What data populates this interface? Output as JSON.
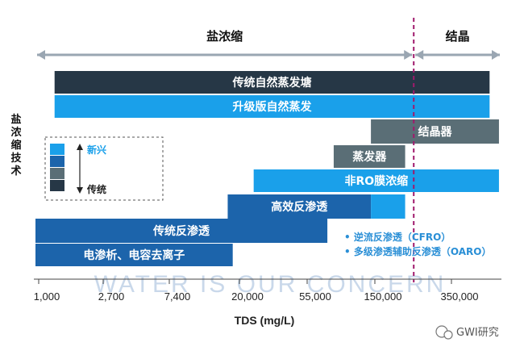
{
  "chart_data": {
    "type": "gantt-range",
    "xlabel": "TDS (mg/L)",
    "ylabel": "盐浓缩技术",
    "x_tick_labels": [
      "1,000",
      "2,700",
      "7,400",
      "20,000",
      "55,000",
      "150,000",
      "350,000"
    ],
    "x_scale": "log",
    "x_range": [
      1000,
      600000
    ],
    "zones": [
      {
        "name": "盐浓缩",
        "from": 1000,
        "to": 180000
      },
      {
        "name": "结晶",
        "from": 180000,
        "to": 600000
      }
    ],
    "divider_value": 180000,
    "bars": [
      {
        "label": "传统自然蒸发塘",
        "start": 1300,
        "end": 510000,
        "color": "#263746"
      },
      {
        "label": "升级版自然蒸发",
        "start": 1300,
        "end": 510000,
        "color": "#1aa0ea"
      },
      {
        "label": "结晶器",
        "start": 100000,
        "end": 580000,
        "color": "#5a6e76"
      },
      {
        "label": "蒸发器",
        "start": 60000,
        "end": 160000,
        "color": "#5a6e76"
      },
      {
        "label": "非RO膜浓缩",
        "start": 20000,
        "end": 580000,
        "color": "#1aa0ea"
      },
      {
        "label": "高效反渗透",
        "start": 14000,
        "end": 100000,
        "color": "#1c64ab"
      },
      {
        "label": "",
        "start": 100000,
        "end": 160000,
        "color": "#1aa0ea"
      },
      {
        "label": "传统反渗透",
        "start": 1000,
        "end": 55000,
        "color": "#1c64ab"
      },
      {
        "label": "电渗析、电容去离子",
        "start": 1000,
        "end": 15000,
        "color": "#1c64ab"
      }
    ],
    "legend": {
      "top_label": "新兴",
      "bottom_label": "传统",
      "colors": [
        "#1aa0ea",
        "#1c64ab",
        "#5a6e76",
        "#263746"
      ]
    },
    "annotations": [
      "•  逆流反渗透（CFRO）",
      "•  多级渗透辅助反渗透（OARO）"
    ],
    "watermark": "WATER IS OUR CONCERN",
    "brand": "GWI研究",
    "colors": {
      "axis": "#444444",
      "arrow": "#9aa6b2",
      "divider": "#a01a6c"
    }
  }
}
